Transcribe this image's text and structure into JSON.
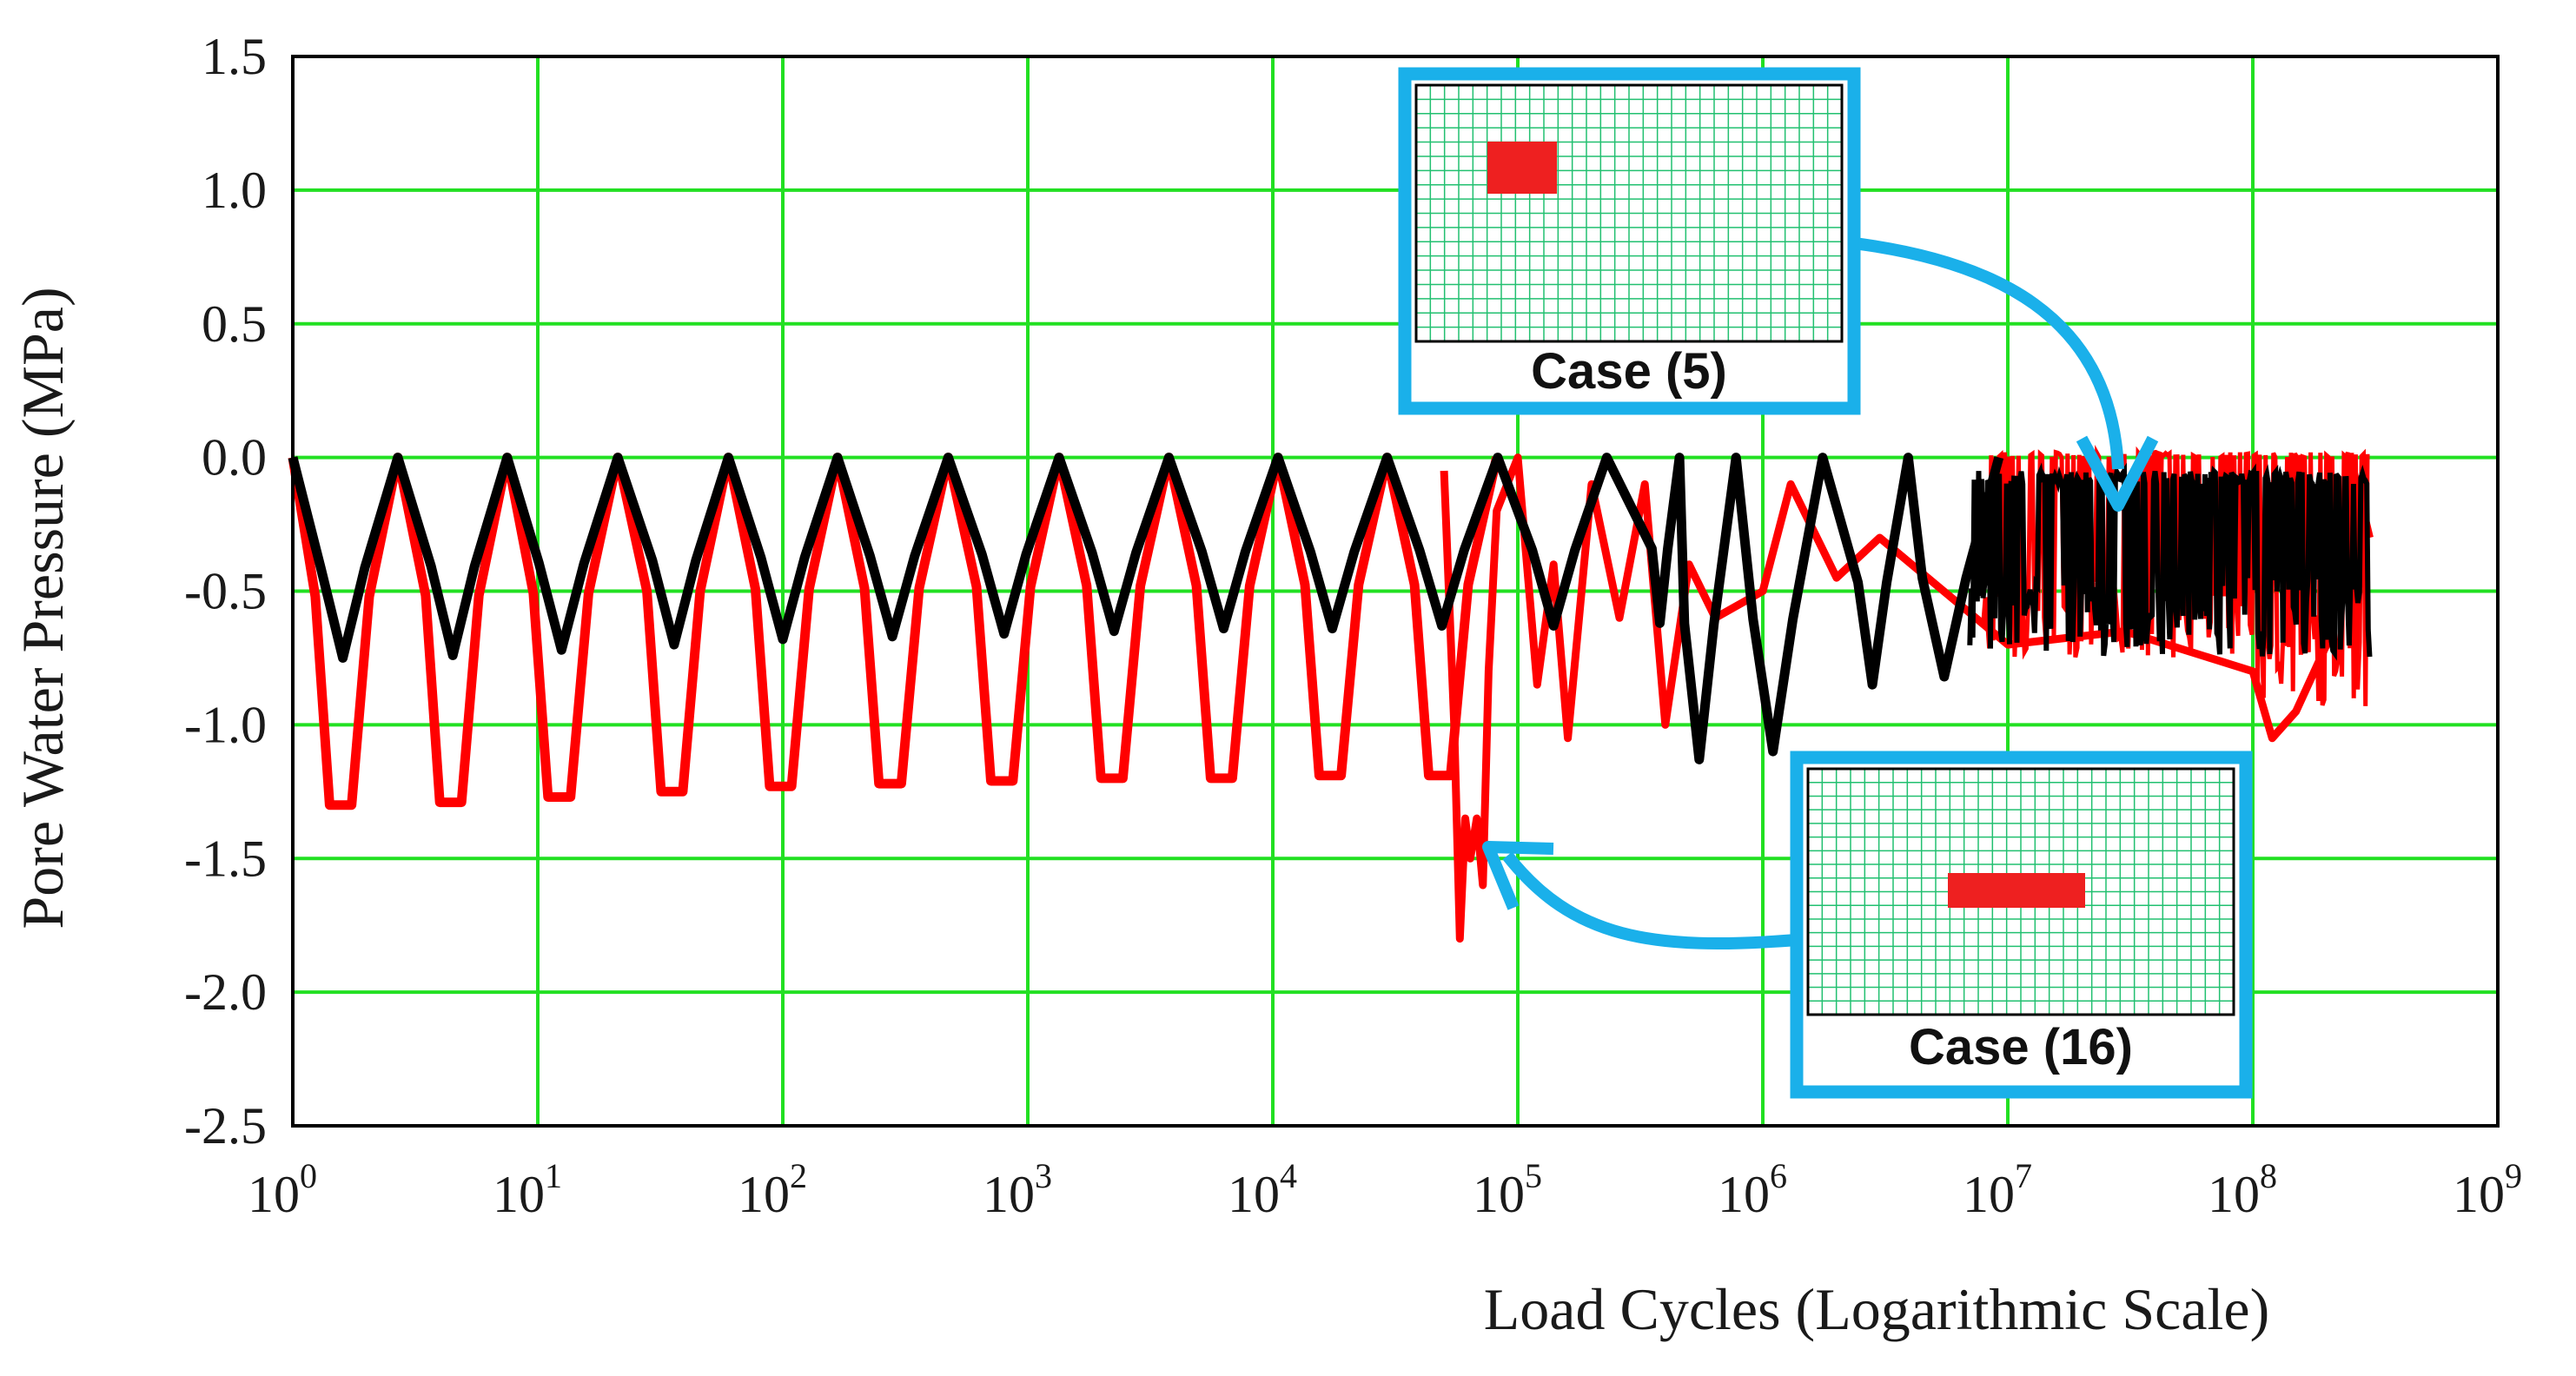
{
  "chart_data": {
    "type": "line",
    "title": "",
    "xlabel": "Load Cycles (Logarithmic Scale)",
    "ylabel": "Pore Water Pressure (MPa)",
    "x_scale": "log",
    "xlim": [
      1,
      1000000000
    ],
    "ylim": [
      -2.5,
      1.5
    ],
    "grid": true,
    "grid_color": "#22e022",
    "x_ticks": [
      {
        "base": "10",
        "exp": "0"
      },
      {
        "base": "10",
        "exp": "1"
      },
      {
        "base": "10",
        "exp": "2"
      },
      {
        "base": "10",
        "exp": "3"
      },
      {
        "base": "10",
        "exp": "4"
      },
      {
        "base": "10",
        "exp": "5"
      },
      {
        "base": "10",
        "exp": "6"
      },
      {
        "base": "10",
        "exp": "7"
      },
      {
        "base": "10",
        "exp": "8"
      },
      {
        "base": "10",
        "exp": "9"
      }
    ],
    "y_ticks": [
      "1.5",
      "1.0",
      "0.5",
      "0.0",
      "-0.5",
      "-1.0",
      "-1.5",
      "-2.0",
      "-2.5"
    ],
    "series": [
      {
        "color": "#ff0000",
        "trough_cycles": [
          1.6,
          4.5,
          12.5,
          36,
          100,
          280,
          800,
          2250,
          6300,
          17500,
          49000
        ],
        "trough_min": [
          -1.3,
          -1.29,
          -1.27,
          -1.25,
          -1.23,
          -1.22,
          -1.21,
          -1.2,
          -1.2,
          -1.19,
          -1.19
        ],
        "irregular": [
          [
            50000,
            -0.05
          ],
          [
            55000,
            -1.0
          ],
          [
            58000,
            -1.8
          ],
          [
            61000,
            -1.35
          ],
          [
            64000,
            -1.5
          ],
          [
            68000,
            -1.35
          ],
          [
            72000,
            -1.6
          ],
          [
            76000,
            -0.8
          ],
          [
            82000,
            -0.2
          ],
          [
            100000,
            0.0
          ],
          [
            120000,
            -0.85
          ],
          [
            140000,
            -0.4
          ],
          [
            160000,
            -1.05
          ],
          [
            200000,
            -0.1
          ],
          [
            260000,
            -0.6
          ],
          [
            330000,
            -0.1
          ],
          [
            400000,
            -1.0
          ],
          [
            500000,
            -0.4
          ],
          [
            640000,
            -0.6
          ],
          [
            1000000,
            -0.5
          ],
          [
            1300000,
            -0.1
          ],
          [
            2000000,
            -0.45
          ],
          [
            3000000,
            -0.3
          ],
          [
            10000000,
            -0.7
          ],
          [
            30000000,
            -0.65
          ],
          [
            100000000,
            -0.8
          ],
          [
            120000000,
            -1.05
          ],
          [
            150000000,
            -0.95
          ],
          [
            200000000,
            -0.7
          ],
          [
            250000000,
            0.0
          ],
          [
            300000000,
            -0.3
          ]
        ]
      },
      {
        "color": "#000000",
        "trough_cycles": [
          1.6,
          4.5,
          12.5,
          36,
          100,
          280,
          800,
          2250,
          6300,
          17500,
          49000,
          140000,
          380000,
          550000,
          1100000,
          2800000,
          5500000
        ],
        "trough_min": [
          -0.75,
          -0.74,
          -0.72,
          -0.7,
          -0.68,
          -0.67,
          -0.66,
          -0.65,
          -0.64,
          -0.64,
          -0.63,
          -0.63,
          -0.62,
          -1.13,
          -1.1,
          -0.85,
          -0.82
        ],
        "noisy_band": [
          [
            7000000,
            -0.1,
            -0.8
          ],
          [
            300000000,
            -0.05,
            -0.7
          ]
        ]
      }
    ],
    "annotations": [
      {
        "label": "Case (5)",
        "points_to": [
          28000000,
          -0.15
        ]
      },
      {
        "label": "Case (16)",
        "points_to": [
          75000,
          -1.5
        ]
      }
    ]
  }
}
